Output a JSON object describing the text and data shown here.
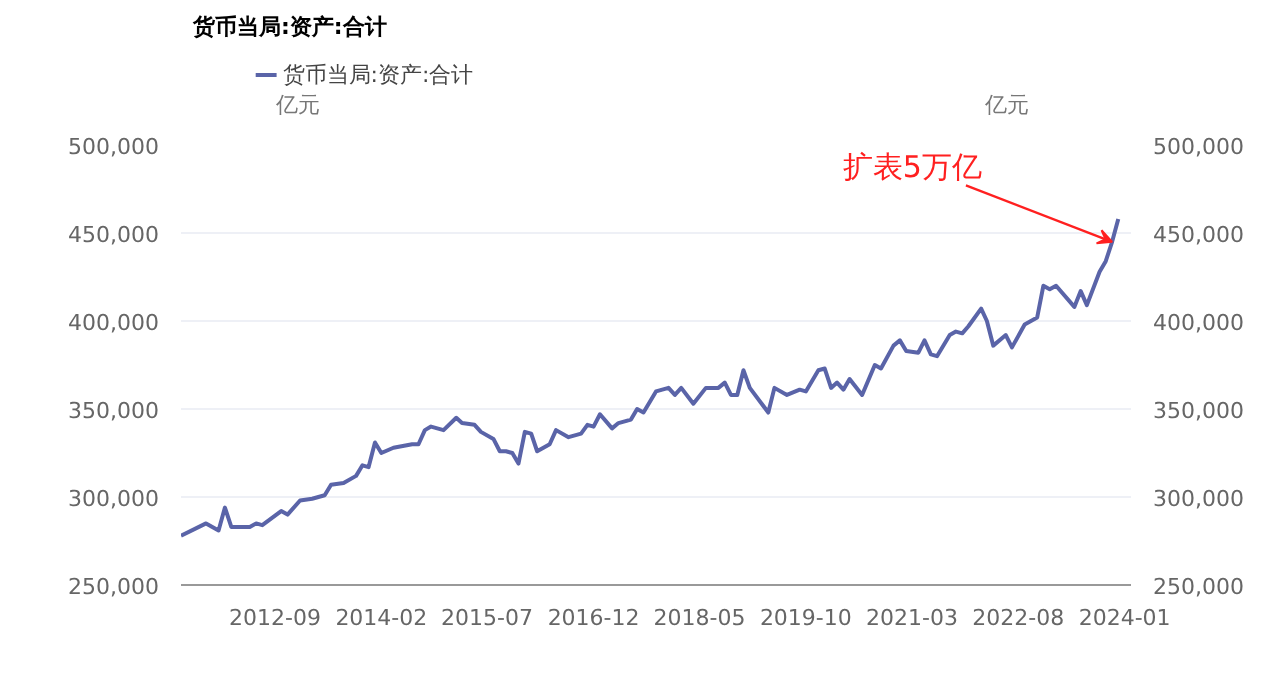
{
  "chart_data": {
    "type": "line",
    "title": "货币当局:资产:合计",
    "ylabel": "亿元",
    "y2label": "亿元",
    "x": [
      "2011-06",
      "2011-10",
      "2011-12",
      "2012-01",
      "2012-02",
      "2012-05",
      "2012-06",
      "2012-07",
      "2012-10",
      "2012-11",
      "2013-01",
      "2013-03",
      "2013-05",
      "2013-06",
      "2013-08",
      "2013-10",
      "2013-11",
      "2013-12",
      "2014-01",
      "2014-02",
      "2014-04",
      "2014-07",
      "2014-08",
      "2014-09",
      "2014-10",
      "2014-12",
      "2015-02",
      "2015-03",
      "2015-05",
      "2015-06",
      "2015-08",
      "2015-09",
      "2015-10",
      "2015-11",
      "2015-12",
      "2016-01",
      "2016-02",
      "2016-03",
      "2016-05",
      "2016-06",
      "2016-08",
      "2016-10",
      "2016-11",
      "2016-12",
      "2017-01",
      "2017-03",
      "2017-04",
      "2017-06",
      "2017-07",
      "2017-08",
      "2017-10",
      "2017-12",
      "2018-01",
      "2018-02",
      "2018-04",
      "2018-06",
      "2018-08",
      "2018-09",
      "2018-10",
      "2018-11",
      "2018-12",
      "2019-01",
      "2019-04",
      "2019-05",
      "2019-07",
      "2019-09",
      "2019-10",
      "2019-12",
      "2020-01",
      "2020-02",
      "2020-03",
      "2020-04",
      "2020-05",
      "2020-07",
      "2020-09",
      "2020-10",
      "2020-12",
      "2021-01",
      "2021-02",
      "2021-04",
      "2021-05",
      "2021-06",
      "2021-07",
      "2021-09",
      "2021-10",
      "2021-11",
      "2021-12",
      "2022-02",
      "2022-03",
      "2022-04",
      "2022-06",
      "2022-07",
      "2022-09",
      "2022-11",
      "2022-12",
      "2023-01",
      "2023-02",
      "2023-05",
      "2023-06",
      "2023-07",
      "2023-09",
      "2023-10",
      "2023-11",
      "2023-12"
    ],
    "series": [
      {
        "name": "货币当局:资产:合计",
        "color": "#5a64a8",
        "values": [
          278000,
          285000,
          281000,
          294000,
          283000,
          283000,
          285000,
          284000,
          292000,
          290000,
          298000,
          299000,
          301000,
          307000,
          308000,
          312000,
          318000,
          317000,
          331000,
          325000,
          328000,
          330000,
          330000,
          338000,
          340000,
          338000,
          345000,
          342000,
          341000,
          337000,
          333000,
          326000,
          326000,
          325000,
          319000,
          337000,
          336000,
          326000,
          330000,
          338000,
          334000,
          336000,
          341000,
          340000,
          347000,
          339000,
          342000,
          344000,
          350000,
          348000,
          360000,
          362000,
          358000,
          362000,
          353000,
          362000,
          362000,
          365000,
          358000,
          358000,
          372000,
          362000,
          348000,
          362000,
          358000,
          361000,
          360000,
          372000,
          373000,
          362000,
          365000,
          361000,
          367000,
          358000,
          375000,
          373000,
          386000,
          389000,
          383000,
          382000,
          389000,
          381000,
          380000,
          392000,
          394000,
          393000,
          397000,
          407000,
          400000,
          386000,
          392000,
          385000,
          398000,
          402000,
          420000,
          418000,
          420000,
          408000,
          417000,
          409000,
          428000,
          434000,
          445000,
          458000
        ]
      }
    ],
    "xlim": [
      "2011-06",
      "2024-02"
    ],
    "xticks": [
      "2012-09",
      "2014-02",
      "2015-07",
      "2016-12",
      "2018-05",
      "2019-10",
      "2021-03",
      "2022-08",
      "2024-01"
    ],
    "ylim": [
      250000,
      500000
    ],
    "yticks": [
      {
        "value": 250000,
        "label": "250,000"
      },
      {
        "value": 300000,
        "label": "300,000"
      },
      {
        "value": 350000,
        "label": "350,000"
      },
      {
        "value": 400000,
        "label": "400,000"
      },
      {
        "value": 450000,
        "label": "450,000"
      },
      {
        "value": 500000,
        "label": "500,000"
      }
    ],
    "y2lim": [
      250000,
      500000
    ],
    "y2ticks": [
      {
        "value": 250000,
        "label": "250,000"
      },
      {
        "value": 300000,
        "label": "300,000"
      },
      {
        "value": 350000,
        "label": "350,000"
      },
      {
        "value": 400000,
        "label": "400,000"
      },
      {
        "value": 450000,
        "label": "450,000"
      },
      {
        "value": 500000,
        "label": "500,000"
      }
    ],
    "grid": "y",
    "legend": "top left",
    "marker": "none",
    "line_style": "solid",
    "annotations": [
      {
        "text": "扩表5万亿",
        "x": "2023-11",
        "y": 445000
      }
    ]
  }
}
